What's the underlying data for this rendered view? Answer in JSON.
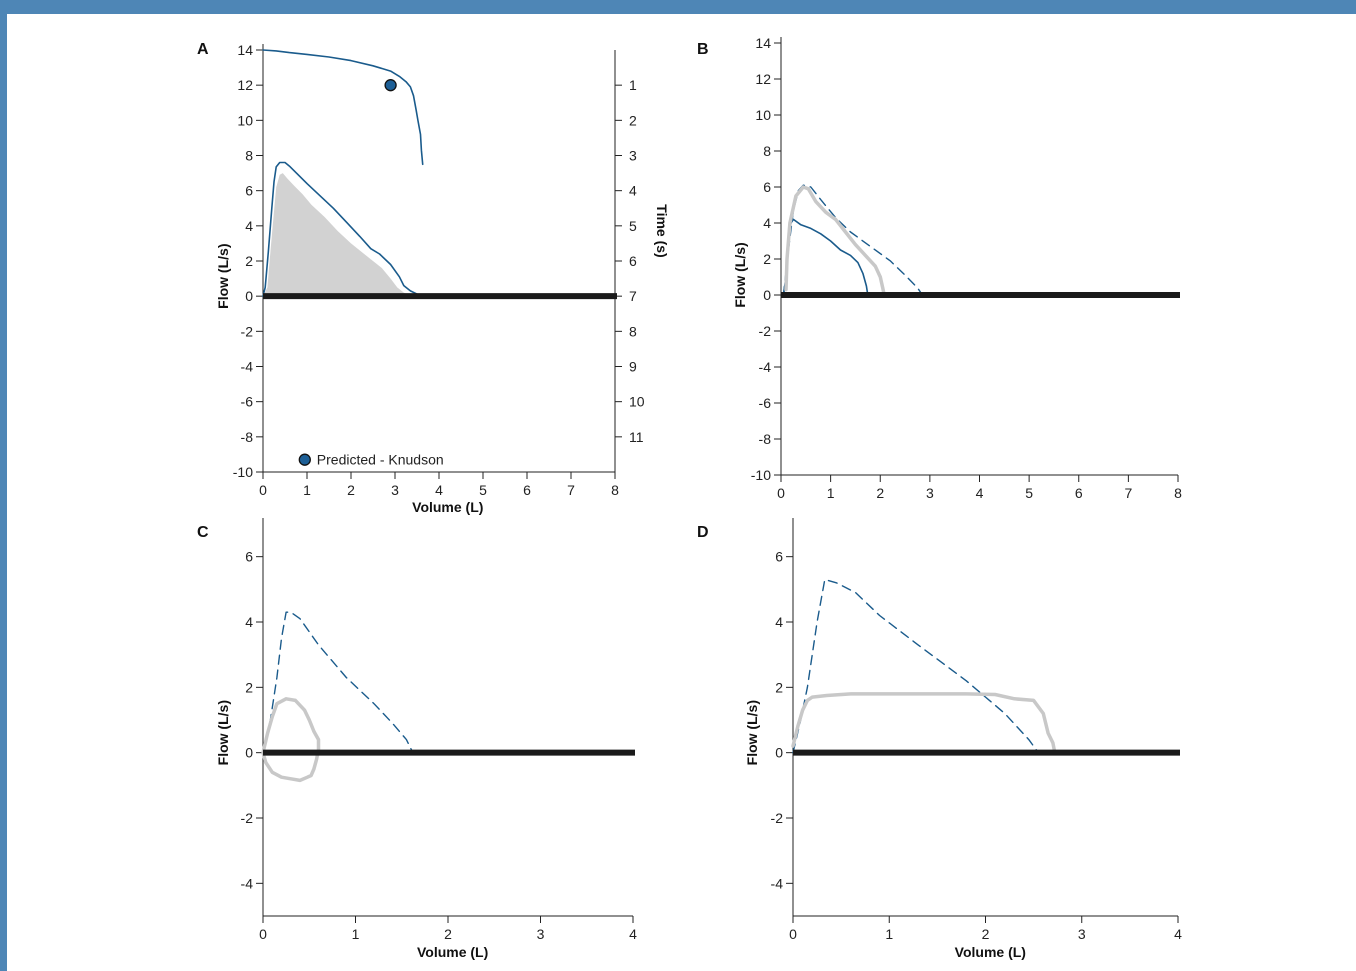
{
  "colors": {
    "frame": "#4e86b6",
    "predicted_curve": "#1a5b8c",
    "measured_gray": "#c8c8c8",
    "fill_gray": "#d2d2d2",
    "zero_line": "#1a1a1a",
    "marker_fill": "#1d5f96"
  },
  "chart_data": [
    {
      "panel": "A",
      "type": "line",
      "xlabel": "Volume (L)",
      "ylabel": "Flow (L/s)",
      "y2label": "Time (s)",
      "xlim": [
        0,
        8
      ],
      "ylim": [
        -10,
        14
      ],
      "x_ticks": [
        0,
        1,
        2,
        3,
        4,
        5,
        6,
        7,
        8
      ],
      "y_ticks": [
        -10,
        -8,
        -6,
        -4,
        -2,
        0,
        2,
        4,
        6,
        8,
        10,
        12,
        14
      ],
      "y2_ticks": [
        1,
        2,
        3,
        4,
        5,
        6,
        7,
        8,
        9,
        10,
        11
      ],
      "y2_scale": "y = 14 - 2*t",
      "grid": false,
      "legend": {
        "label": "Predicted - Knudson",
        "marker": "circle",
        "position": "bottom-left"
      },
      "series": [
        {
          "style": "thin-solid",
          "color": "#1a5b8c",
          "points": [
            [
              0,
              14
            ],
            [
              0.3,
              13.95
            ],
            [
              0.6,
              13.85
            ],
            [
              1,
              13.75
            ],
            [
              1.5,
              13.6
            ],
            [
              2,
              13.4
            ],
            [
              2.5,
              13.1
            ],
            [
              2.9,
              12.8
            ],
            [
              3.1,
              12.5
            ],
            [
              3.25,
              12.2
            ],
            [
              3.35,
              11.9
            ],
            [
              3.42,
              11.4
            ],
            [
              3.48,
              10.6
            ],
            [
              3.52,
              10
            ],
            [
              3.58,
              9.2
            ],
            [
              3.6,
              8.3
            ],
            [
              3.63,
              7.5
            ]
          ]
        },
        {
          "style": "thin-solid",
          "color": "#1a5b8c",
          "points": [
            [
              0,
              0
            ],
            [
              0.05,
              0.5
            ],
            [
              0.12,
              2.5
            ],
            [
              0.2,
              5
            ],
            [
              0.25,
              6.5
            ],
            [
              0.3,
              7.35
            ],
            [
              0.38,
              7.6
            ],
            [
              0.5,
              7.6
            ],
            [
              0.6,
              7.4
            ],
            [
              0.8,
              6.9
            ],
            [
              1,
              6.4
            ],
            [
              1.3,
              5.7
            ],
            [
              1.6,
              5
            ],
            [
              1.9,
              4.2
            ],
            [
              2.2,
              3.4
            ],
            [
              2.45,
              2.7
            ],
            [
              2.65,
              2.4
            ],
            [
              2.9,
              1.8
            ],
            [
              3.1,
              1.1
            ],
            [
              3.2,
              0.6
            ],
            [
              3.35,
              0.3
            ],
            [
              3.6,
              0
            ]
          ]
        },
        {
          "style": "gray-fill",
          "color": "#d2d2d2",
          "points": [
            [
              0,
              0
            ],
            [
              0.1,
              0.5
            ],
            [
              0.15,
              2
            ],
            [
              0.22,
              4
            ],
            [
              0.3,
              6.2
            ],
            [
              0.38,
              6.9
            ],
            [
              0.45,
              7
            ],
            [
              0.55,
              6.7
            ],
            [
              0.7,
              6.3
            ],
            [
              0.9,
              5.8
            ],
            [
              1.1,
              5.2
            ],
            [
              1.4,
              4.5
            ],
            [
              1.7,
              3.7
            ],
            [
              2,
              3
            ],
            [
              2.3,
              2.4
            ],
            [
              2.55,
              1.9
            ],
            [
              2.7,
              1.6
            ],
            [
              2.9,
              1
            ],
            [
              3.05,
              0.5
            ],
            [
              3.2,
              0.2
            ],
            [
              3.4,
              0
            ]
          ]
        }
      ],
      "markers": [
        {
          "x": 2.9,
          "y": 12,
          "label": "Predicted - Knudson"
        }
      ]
    },
    {
      "panel": "B",
      "type": "line",
      "ylabel": "Flow (L/s)",
      "xlim": [
        0,
        8
      ],
      "ylim": [
        -10,
        14
      ],
      "x_ticks": [
        0,
        1,
        2,
        3,
        4,
        5,
        6,
        7,
        8
      ],
      "y_ticks": [
        -10,
        -8,
        -6,
        -4,
        -2,
        0,
        2,
        4,
        6,
        8,
        10,
        12,
        14
      ],
      "grid": false,
      "series": [
        {
          "style": "dashed",
          "color": "#1a5b8c",
          "points": [
            [
              0.05,
              0
            ],
            [
              0.15,
              2.5
            ],
            [
              0.25,
              4.7
            ],
            [
              0.35,
              5.8
            ],
            [
              0.45,
              6.1
            ],
            [
              0.6,
              6
            ],
            [
              0.8,
              5.3
            ],
            [
              1.1,
              4.3
            ],
            [
              1.4,
              3.5
            ],
            [
              1.8,
              2.7
            ],
            [
              2.2,
              1.9
            ],
            [
              2.5,
              1.1
            ],
            [
              2.75,
              0.4
            ],
            [
              2.85,
              0
            ]
          ]
        },
        {
          "style": "thin-solid",
          "color": "#1a5b8c",
          "points": [
            [
              0.05,
              0
            ],
            [
              0.1,
              1
            ],
            [
              0.15,
              2.8
            ],
            [
              0.2,
              4
            ],
            [
              0.25,
              4.2
            ],
            [
              0.4,
              3.9
            ],
            [
              0.6,
              3.7
            ],
            [
              0.8,
              3.4
            ],
            [
              1,
              3
            ],
            [
              1.2,
              2.5
            ],
            [
              1.4,
              2.2
            ],
            [
              1.55,
              1.8
            ],
            [
              1.65,
              1.2
            ],
            [
              1.72,
              0.5
            ],
            [
              1.75,
              0
            ]
          ]
        },
        {
          "style": "thick-gray",
          "color": "#c8c8c8",
          "points": [
            [
              0.1,
              0.3
            ],
            [
              0.12,
              2
            ],
            [
              0.18,
              4
            ],
            [
              0.3,
              5.5
            ],
            [
              0.45,
              6
            ],
            [
              0.55,
              5.9
            ],
            [
              0.7,
              5.2
            ],
            [
              0.9,
              4.6
            ],
            [
              1.1,
              4.2
            ],
            [
              1.3,
              3.5
            ],
            [
              1.5,
              2.8
            ],
            [
              1.7,
              2.2
            ],
            [
              1.9,
              1.6
            ],
            [
              2,
              1
            ],
            [
              2.05,
              0.4
            ],
            [
              2.08,
              0
            ]
          ]
        }
      ]
    },
    {
      "panel": "C",
      "type": "line",
      "xlabel": "Volume (L)",
      "ylabel": "Flow (L/s)",
      "xlim": [
        0,
        4
      ],
      "ylim": [
        -5,
        7
      ],
      "x_ticks": [
        0,
        1,
        2,
        3,
        4
      ],
      "y_ticks": [
        -4,
        -2,
        0,
        2,
        4,
        6
      ],
      "grid": false,
      "series": [
        {
          "style": "dashed",
          "color": "#1a5b8c",
          "points": [
            [
              0,
              0
            ],
            [
              0.08,
              1
            ],
            [
              0.15,
              2.3
            ],
            [
              0.2,
              3.5
            ],
            [
              0.25,
              4.3
            ],
            [
              0.3,
              4.3
            ],
            [
              0.4,
              4.1
            ],
            [
              0.6,
              3.3
            ],
            [
              0.9,
              2.3
            ],
            [
              1.2,
              1.5
            ],
            [
              1.4,
              0.9
            ],
            [
              1.55,
              0.4
            ],
            [
              1.62,
              0
            ]
          ]
        },
        {
          "style": "thick-gray",
          "color": "#c8c8c8",
          "closed": true,
          "points": [
            [
              0,
              0
            ],
            [
              0.05,
              0.6
            ],
            [
              0.1,
              1.1
            ],
            [
              0.15,
              1.5
            ],
            [
              0.25,
              1.65
            ],
            [
              0.35,
              1.6
            ],
            [
              0.45,
              1.3
            ],
            [
              0.5,
              1
            ],
            [
              0.55,
              0.65
            ],
            [
              0.6,
              0.4
            ],
            [
              0.6,
              0.1
            ],
            [
              0.58,
              -0.2
            ],
            [
              0.55,
              -0.5
            ],
            [
              0.52,
              -0.7
            ],
            [
              0.48,
              -0.75
            ],
            [
              0.4,
              -0.85
            ],
            [
              0.3,
              -0.8
            ],
            [
              0.2,
              -0.75
            ],
            [
              0.1,
              -0.6
            ],
            [
              0.03,
              -0.3
            ],
            [
              0,
              0
            ]
          ]
        }
      ]
    },
    {
      "panel": "D",
      "type": "line",
      "xlabel": "Volume (L)",
      "ylabel": "Flow (L/s)",
      "xlim": [
        0,
        4
      ],
      "ylim": [
        -5,
        7
      ],
      "x_ticks": [
        0,
        1,
        2,
        3,
        4
      ],
      "y_ticks": [
        -4,
        -2,
        0,
        2,
        4,
        6
      ],
      "grid": false,
      "series": [
        {
          "style": "dashed",
          "color": "#1a5b8c",
          "points": [
            [
              0,
              0
            ],
            [
              0.08,
              1
            ],
            [
              0.15,
              2
            ],
            [
              0.25,
              4
            ],
            [
              0.33,
              5.3
            ],
            [
              0.45,
              5.2
            ],
            [
              0.65,
              4.9
            ],
            [
              0.9,
              4.2
            ],
            [
              1.3,
              3.3
            ],
            [
              1.8,
              2.2
            ],
            [
              2.2,
              1.2
            ],
            [
              2.45,
              0.4
            ],
            [
              2.55,
              0
            ]
          ]
        },
        {
          "style": "thick-gray",
          "color": "#c8c8c8",
          "points": [
            [
              0,
              0.2
            ],
            [
              0.05,
              0.8
            ],
            [
              0.1,
              1.3
            ],
            [
              0.15,
              1.6
            ],
            [
              0.2,
              1.7
            ],
            [
              0.35,
              1.75
            ],
            [
              0.6,
              1.8
            ],
            [
              0.9,
              1.8
            ],
            [
              1.2,
              1.8
            ],
            [
              1.5,
              1.8
            ],
            [
              1.8,
              1.8
            ],
            [
              2.1,
              1.78
            ],
            [
              2.3,
              1.65
            ],
            [
              2.5,
              1.6
            ],
            [
              2.6,
              1.2
            ],
            [
              2.65,
              0.6
            ],
            [
              2.7,
              0.3
            ],
            [
              2.72,
              0
            ]
          ]
        }
      ]
    }
  ]
}
